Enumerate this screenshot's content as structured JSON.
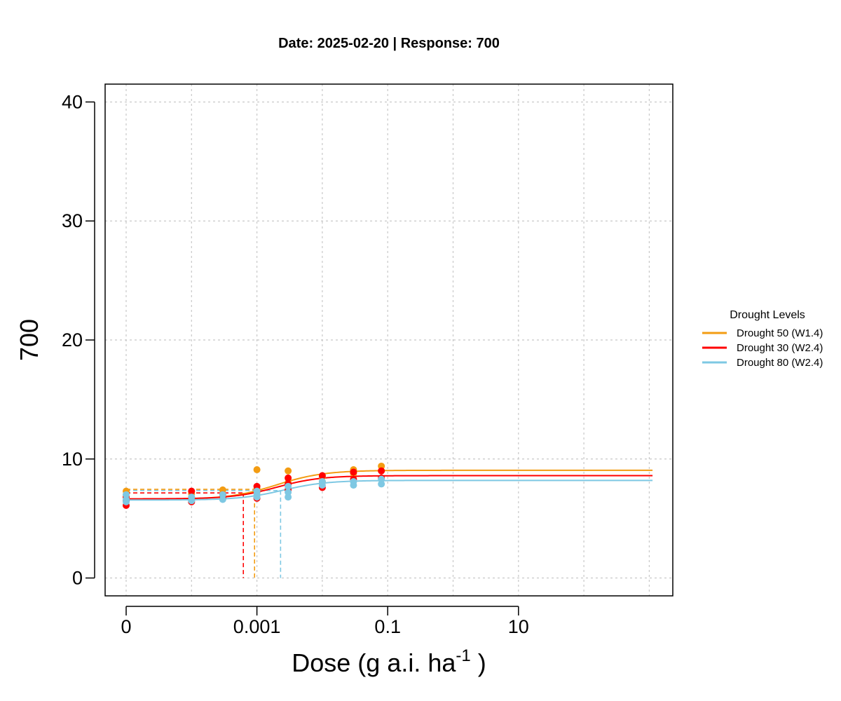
{
  "chart_data": {
    "type": "scatter",
    "title": "Date: 2025-02-20 | Response: 700",
    "ylabel": "700",
    "xlabel": {
      "main": "Dose (g a.i. ha",
      "sup": "-1",
      "close": " )"
    },
    "x_scale": "log10 (dose 0 plotted at far left)",
    "ylim": [
      -1.5,
      41.5
    ],
    "yticks": [
      0,
      10,
      20,
      30,
      40
    ],
    "ytick_labels": [
      "0",
      "10",
      "20",
      "30",
      "40"
    ],
    "xticks": [
      1e-05,
      0.001,
      0.1,
      10
    ],
    "xtick_labels": [
      "0",
      "0.001",
      "0.1",
      "10"
    ],
    "grid": true,
    "legend": {
      "title": "Drought Levels",
      "position": "right",
      "entries": [
        "Drought 50 (W1.4)",
        "Drought 30 (W2.4)",
        "Drought 80 (W2.4)"
      ]
    },
    "series": [
      {
        "name": "Drought 50 (W1.4)",
        "color": "#F39C12",
        "points": [
          [
            1e-05,
            7.3
          ],
          [
            1e-05,
            7.0
          ],
          [
            1e-05,
            6.8
          ],
          [
            0.0001,
            7.1
          ],
          [
            0.0001,
            6.8
          ],
          [
            0.0003,
            7.4
          ],
          [
            0.0003,
            7.0
          ],
          [
            0.001,
            9.1
          ],
          [
            0.001,
            7.5
          ],
          [
            0.001,
            7.2
          ],
          [
            0.003,
            9.0
          ],
          [
            0.003,
            8.0
          ],
          [
            0.01,
            8.5
          ],
          [
            0.01,
            8.1
          ],
          [
            0.03,
            9.1
          ],
          [
            0.03,
            8.8
          ],
          [
            0.08,
            9.4
          ],
          [
            0.08,
            9.0
          ]
        ],
        "curve": {
          "lower": 6.6,
          "upper": 9.05,
          "ed50": 0.002,
          "slope": 1.2
        },
        "ed50_marker": {
          "x": 0.00092,
          "y": 7.45
        }
      },
      {
        "name": "Drought 30 (W2.4)",
        "color": "#FF0000",
        "points": [
          [
            1e-05,
            6.1
          ],
          [
            1e-05,
            6.5
          ],
          [
            1e-05,
            6.8
          ],
          [
            0.0001,
            7.3
          ],
          [
            0.0001,
            6.4
          ],
          [
            0.0003,
            7.0
          ],
          [
            0.0003,
            6.7
          ],
          [
            0.001,
            7.7
          ],
          [
            0.001,
            7.3
          ],
          [
            0.001,
            6.7
          ],
          [
            0.003,
            8.4
          ],
          [
            0.003,
            7.9
          ],
          [
            0.003,
            7.4
          ],
          [
            0.01,
            8.6
          ],
          [
            0.01,
            7.6
          ],
          [
            0.03,
            8.9
          ],
          [
            0.03,
            8.3
          ],
          [
            0.08,
            9.0
          ],
          [
            0.08,
            8.4
          ]
        ],
        "curve": {
          "lower": 6.65,
          "upper": 8.6,
          "ed50": 0.002,
          "slope": 1.3
        },
        "ed50_marker": {
          "x": 0.00062,
          "y": 7.15
        }
      },
      {
        "name": "Drought 80 (W2.4)",
        "color": "#7EC8E3",
        "points": [
          [
            1e-05,
            7.0
          ],
          [
            1e-05,
            6.6
          ],
          [
            1e-05,
            6.4
          ],
          [
            0.0001,
            6.8
          ],
          [
            0.0001,
            6.5
          ],
          [
            0.0003,
            7.0
          ],
          [
            0.0003,
            6.6
          ],
          [
            0.001,
            7.3
          ],
          [
            0.001,
            7.0
          ],
          [
            0.001,
            6.8
          ],
          [
            0.003,
            7.7
          ],
          [
            0.003,
            7.2
          ],
          [
            0.003,
            6.8
          ],
          [
            0.01,
            8.1
          ],
          [
            0.01,
            7.8
          ],
          [
            0.03,
            8.1
          ],
          [
            0.03,
            7.8
          ],
          [
            0.08,
            8.3
          ],
          [
            0.08,
            7.9
          ]
        ],
        "curve": {
          "lower": 6.55,
          "upper": 8.2,
          "ed50": 0.0025,
          "slope": 1.3
        },
        "ed50_marker": {
          "x": 0.0023,
          "y": 7.35
        }
      }
    ]
  }
}
